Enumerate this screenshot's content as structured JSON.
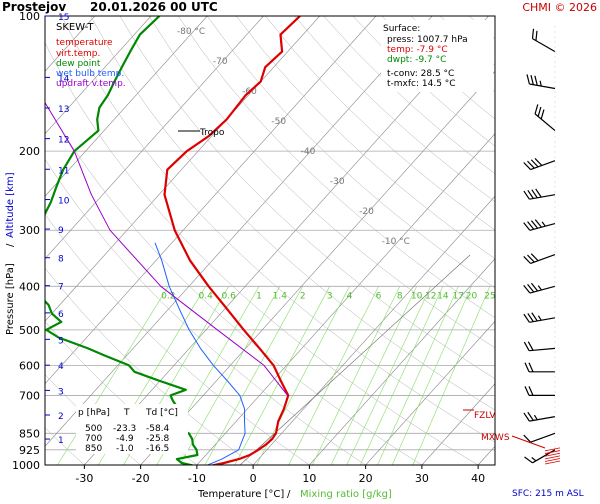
{
  "header": {
    "station": "Prostejov",
    "datetime": "20.01.2026 00 UTC",
    "copyright": "CHMI © 2026"
  },
  "legend": {
    "items": [
      {
        "label": "SKEW-T",
        "color": "#000000"
      },
      {
        "label": "temperature",
        "color": "#dd0000"
      },
      {
        "label": "virt.temp.",
        "color": "#dd0000"
      },
      {
        "label": "dew point",
        "color": "#008800"
      },
      {
        "label": "wet bulb temp.",
        "color": "#2060ff"
      },
      {
        "label": "updraft v.temp.",
        "color": "#9900cc"
      }
    ]
  },
  "surface": {
    "title": "Surface:",
    "press": "press: 1007.7 hPa",
    "temp": "temp: -7.9 °C",
    "dwpt": "dwpt: -9.7 °C",
    "tconv": "t-conv: 28.5 °C",
    "tmxfc": "t-mxfc: 14.5 °C"
  },
  "table": {
    "header": {
      "p": "p [hPa]",
      "t": "T",
      "td": "Td [°C]"
    },
    "rows": [
      {
        "p": "500",
        "t": "-23.3",
        "td": "-58.4"
      },
      {
        "p": "700",
        "t": "-4.9",
        "td": "-25.8"
      },
      {
        "p": "850",
        "t": "-1.0",
        "td": "-16.5"
      }
    ]
  },
  "labels": {
    "tropo": "Tropo",
    "fzlv": "FZLV",
    "mxws": "MXWS",
    "sfc": "SFC: 215 m ASL",
    "y_axis_pressure": "Pressure [hPa]",
    "y_axis_sep": "/",
    "y_axis_altitude": "Altitude [km]",
    "x_axis_temp": "Temperature [°C]",
    "x_axis_sep": "/",
    "x_axis_mix": "Mixing ratio [g/kg]"
  },
  "colors": {
    "temperature": "#dd0000",
    "dewpoint": "#008800",
    "wetbulb": "#2060ff",
    "updraft": "#9900cc",
    "isotherm": "#888888",
    "mixing": "#88dd66",
    "header_red": "#cc0000",
    "altitude_blue": "#0000cc"
  },
  "chart_data": {
    "type": "line",
    "diagram": "skew-t",
    "x_ticks": [
      -30,
      -20,
      -10,
      0,
      10,
      20,
      30,
      40
    ],
    "xlim": [
      -37,
      43
    ],
    "pressure_ticks": [
      100,
      200,
      300,
      400,
      500,
      600,
      700,
      850,
      925,
      1000
    ],
    "ylim": [
      100,
      1000
    ],
    "altitude_ticks_km": [
      1,
      2,
      3,
      4,
      5,
      6,
      7,
      8,
      9,
      10,
      11,
      12,
      13,
      14,
      15
    ],
    "isotherm_labels": [
      {
        "t": -80,
        "label": "-80 °C"
      },
      {
        "t": -70,
        "label": "-70"
      },
      {
        "t": -60,
        "label": "-60"
      },
      {
        "t": -50,
        "label": "-50"
      },
      {
        "t": -40,
        "label": "-40"
      },
      {
        "t": -30,
        "label": "-30"
      },
      {
        "t": -20,
        "label": "-20"
      },
      {
        "t": -10,
        "label": "-10 °C"
      }
    ],
    "mixing_ratio_labels": [
      "0.2",
      "0.4",
      "0.6",
      "1",
      "1.4",
      "2",
      "3",
      "4",
      "6",
      "8",
      "10",
      "12",
      "14",
      "17",
      "20",
      "25"
    ],
    "mixing_ratio_values": [
      0.2,
      0.4,
      0.6,
      1,
      1.4,
      2,
      3,
      4,
      6,
      8,
      10,
      12,
      14,
      17,
      20,
      25
    ],
    "series": [
      {
        "name": "temperature",
        "points": [
          [
            1007.7,
            -7.9
          ],
          [
            990,
            -5.5
          ],
          [
            970,
            -3.5
          ],
          [
            950,
            -2.2
          ],
          [
            925,
            -1.5
          ],
          [
            900,
            -1.0
          ],
          [
            875,
            -0.8
          ],
          [
            850,
            -1.0
          ],
          [
            800,
            -2.5
          ],
          [
            750,
            -3.5
          ],
          [
            700,
            -4.9
          ],
          [
            650,
            -8.5
          ],
          [
            600,
            -12.3
          ],
          [
            550,
            -17.5
          ],
          [
            500,
            -23.3
          ],
          [
            450,
            -29.5
          ],
          [
            400,
            -36.5
          ],
          [
            350,
            -44.0
          ],
          [
            300,
            -51.5
          ],
          [
            250,
            -59.0
          ],
          [
            220,
            -62.5
          ],
          [
            200,
            -62.0
          ],
          [
            185,
            -60.5
          ],
          [
            170,
            -60.0
          ],
          [
            150,
            -60.5
          ],
          [
            140,
            -60.0
          ],
          [
            130,
            -61.5
          ],
          [
            120,
            -61.0
          ],
          [
            110,
            -64.0
          ],
          [
            100,
            -63.5
          ]
        ]
      },
      {
        "name": "dew point",
        "points": [
          [
            1007.7,
            -9.7
          ],
          [
            990,
            -13.0
          ],
          [
            970,
            -14.5
          ],
          [
            950,
            -11.5
          ],
          [
            925,
            -12.5
          ],
          [
            900,
            -14.0
          ],
          [
            875,
            -15.0
          ],
          [
            850,
            -16.5
          ],
          [
            820,
            -20.0
          ],
          [
            800,
            -22.0
          ],
          [
            780,
            -21.0
          ],
          [
            760,
            -24.0
          ],
          [
            740,
            -23.0
          ],
          [
            720,
            -24.5
          ],
          [
            700,
            -25.8
          ],
          [
            680,
            -24.0
          ],
          [
            650,
            -30.0
          ],
          [
            620,
            -36.0
          ],
          [
            600,
            -38.0
          ],
          [
            570,
            -44.0
          ],
          [
            550,
            -48.0
          ],
          [
            520,
            -55.0
          ],
          [
            500,
            -58.4
          ],
          [
            480,
            -57.0
          ],
          [
            460,
            -60.0
          ],
          [
            440,
            -62.0
          ],
          [
            420,
            -65.0
          ],
          [
            400,
            -66.0
          ],
          [
            380,
            -68.0
          ],
          [
            360,
            -70.0
          ],
          [
            340,
            -71.5
          ],
          [
            320,
            -73.0
          ],
          [
            300,
            -75.0
          ],
          [
            280,
            -77.0
          ],
          [
            260,
            -78.0
          ],
          [
            240,
            -79.5
          ],
          [
            220,
            -81.0
          ],
          [
            200,
            -82.0
          ],
          [
            180,
            -81.0
          ],
          [
            170,
            -83.0
          ],
          [
            160,
            -84.5
          ],
          [
            150,
            -85.0
          ],
          [
            140,
            -86.0
          ],
          [
            130,
            -87.0
          ],
          [
            120,
            -88.0
          ],
          [
            110,
            -89.0
          ],
          [
            100,
            -88.5
          ]
        ]
      },
      {
        "name": "wet bulb temp.",
        "points": [
          [
            1007.7,
            -8.5
          ],
          [
            970,
            -6.5
          ],
          [
            925,
            -5.0
          ],
          [
            900,
            -5.5
          ],
          [
            850,
            -6.5
          ],
          [
            800,
            -8.5
          ],
          [
            750,
            -10.5
          ],
          [
            700,
            -13.5
          ],
          [
            650,
            -18.0
          ],
          [
            600,
            -23.0
          ],
          [
            550,
            -28.0
          ],
          [
            500,
            -33.0
          ],
          [
            450,
            -38.0
          ],
          [
            400,
            -43.5
          ],
          [
            350,
            -49.0
          ],
          [
            320,
            -53.0
          ]
        ]
      },
      {
        "name": "updraft v.temp.",
        "points": [
          [
            700,
            -5.0
          ],
          [
            600,
            -14.0
          ],
          [
            500,
            -28.0
          ],
          [
            400,
            -45.0
          ],
          [
            300,
            -63.0
          ],
          [
            250,
            -72.0
          ],
          [
            200,
            -82.0
          ],
          [
            150,
            -97.0
          ],
          [
            120,
            -107.0
          ],
          [
            100,
            -115.0
          ]
        ]
      }
    ],
    "wind_barbs": [
      {
        "p": 120,
        "dir": 300,
        "spd": 20
      },
      {
        "p": 145,
        "dir": 280,
        "spd": 25
      },
      {
        "p": 180,
        "dir": 310,
        "spd": 30
      },
      {
        "p": 210,
        "dir": 250,
        "spd": 40
      },
      {
        "p": 250,
        "dir": 260,
        "spd": 40
      },
      {
        "p": 290,
        "dir": 255,
        "spd": 35
      },
      {
        "p": 340,
        "dir": 250,
        "spd": 30
      },
      {
        "p": 400,
        "dir": 255,
        "spd": 25
      },
      {
        "p": 470,
        "dir": 260,
        "spd": 25
      },
      {
        "p": 550,
        "dir": 265,
        "spd": 20
      },
      {
        "p": 620,
        "dir": 270,
        "spd": 20
      },
      {
        "p": 700,
        "dir": 270,
        "spd": 20
      },
      {
        "p": 780,
        "dir": 260,
        "spd": 15
      },
      {
        "p": 850,
        "dir": 250,
        "spd": 10
      },
      {
        "p": 925,
        "dir": 240,
        "spd": 5
      }
    ]
  }
}
